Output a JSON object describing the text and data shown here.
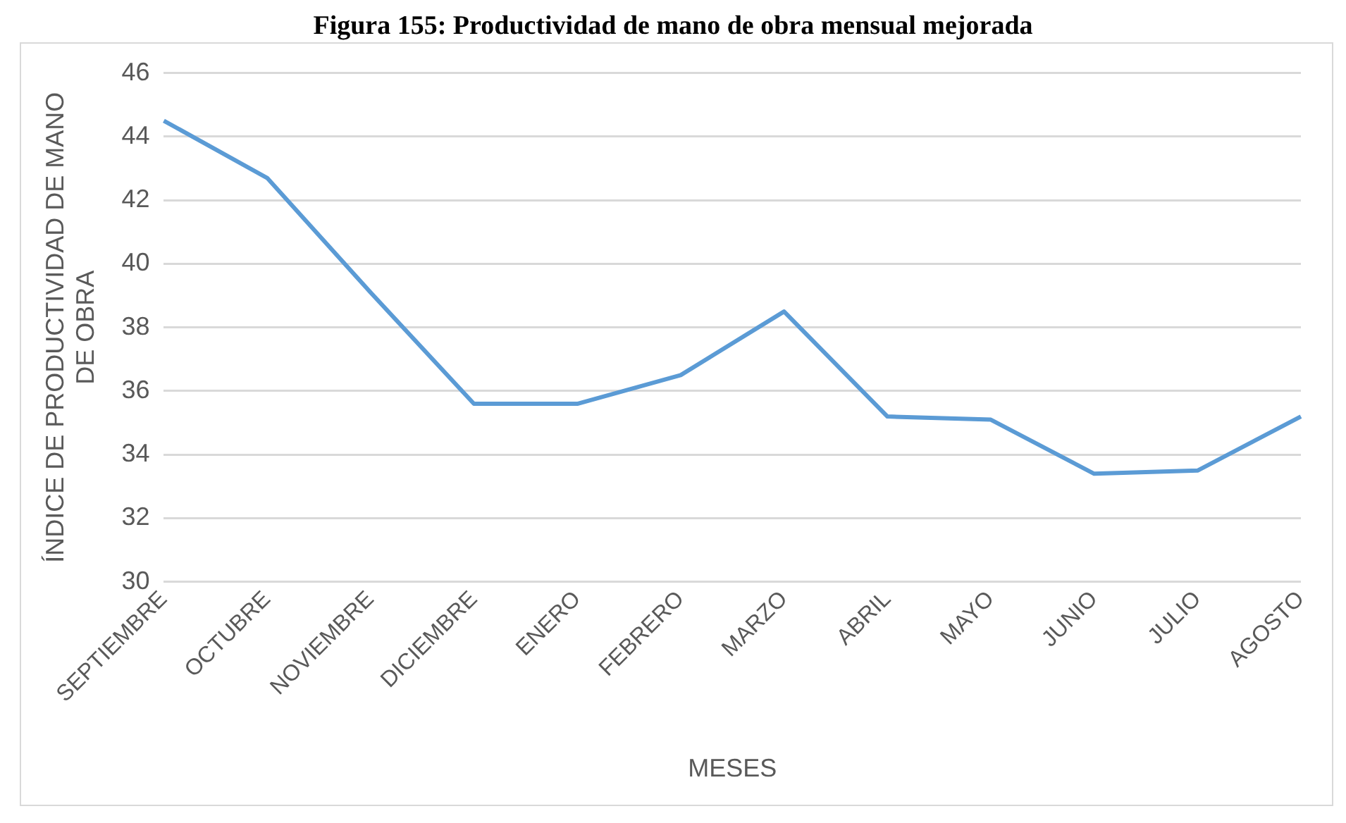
{
  "chart_data": {
    "type": "line",
    "title": "Figura 155: Productividad de mano de obra mensual mejorada",
    "xlabel": "MESES",
    "ylabel": "ÍNDICE DE PRODUCTIVIDAD DE MANO DE OBRA",
    "categories": [
      "SEPTIEMBRE",
      "OCTUBRE",
      "NOVIEMBRE",
      "DICIEMBRE",
      "ENERO",
      "FEBRERO",
      "MARZO",
      "ABRIL",
      "MAYO",
      "JUNIO",
      "JULIO",
      "AGOSTO"
    ],
    "series": [
      {
        "color": "#5b9bd5",
        "values": [
          44.5,
          42.7,
          39.1,
          35.6,
          35.6,
          36.5,
          38.5,
          35.2,
          35.1,
          33.4,
          33.5,
          35.2
        ]
      }
    ],
    "ylim": [
      30,
      46
    ],
    "yticks": [
      30,
      32,
      34,
      36,
      38,
      40,
      42,
      44,
      46
    ],
    "grid": "y",
    "legend": false,
    "marker": "none",
    "line_style": "solid"
  }
}
